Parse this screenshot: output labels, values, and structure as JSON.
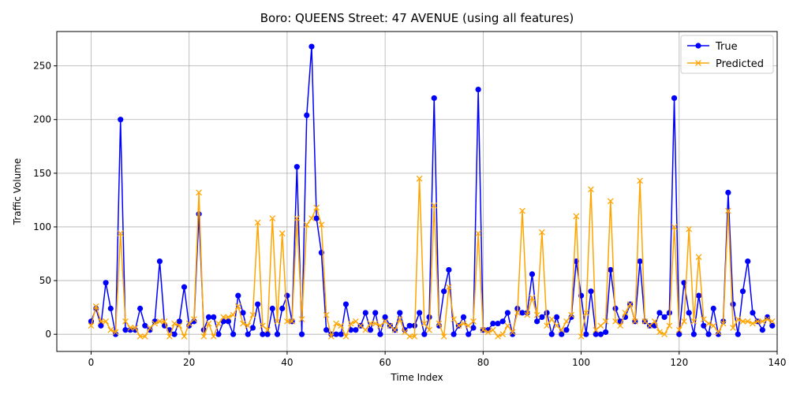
{
  "chart_data": {
    "type": "line",
    "title": "Boro: QUEENS Street: 47 AVENUE (using all features)",
    "xlabel": "Time Index",
    "ylabel": "Traffic Volume",
    "xlim": [
      -7,
      140
    ],
    "ylim": [
      -16,
      282
    ],
    "xticks": [
      0,
      20,
      40,
      60,
      80,
      100,
      120,
      140
    ],
    "yticks": [
      0,
      50,
      100,
      150,
      200,
      250
    ],
    "grid": true,
    "legend_placement": "top-right",
    "series": [
      {
        "name": "True",
        "color": "#0000ff",
        "marker": "circle",
        "values": [
          12,
          24,
          8,
          48,
          24,
          0,
          200,
          4,
          4,
          4,
          24,
          8,
          4,
          12,
          68,
          8,
          4,
          0,
          12,
          44,
          8,
          12,
          112,
          4,
          16,
          16,
          0,
          12,
          12,
          0,
          36,
          20,
          0,
          6,
          28,
          0,
          0,
          24,
          0,
          24,
          36,
          12,
          156,
          0,
          204,
          268,
          108,
          76,
          4,
          0,
          0,
          0,
          28,
          4,
          4,
          8,
          20,
          4,
          20,
          0,
          16,
          8,
          4,
          20,
          4,
          8,
          8,
          20,
          0,
          16,
          220,
          8,
          40,
          60,
          0,
          8,
          16,
          0,
          6,
          228,
          4,
          4,
          10,
          10,
          12,
          20,
          0,
          24,
          20,
          20,
          56,
          12,
          16,
          20,
          0,
          16,
          0,
          4,
          16,
          68,
          36,
          0,
          40,
          0,
          0,
          2,
          60,
          24,
          12,
          16,
          28,
          12,
          68,
          12,
          8,
          8,
          20,
          16,
          20,
          220,
          0,
          48,
          20,
          0,
          36,
          8,
          0,
          24,
          0,
          12,
          132,
          28,
          0,
          40,
          68,
          20,
          12,
          4,
          16,
          8
        ]
      },
      {
        "name": "Predicted",
        "color": "#ffa500",
        "marker": "x",
        "values": [
          8,
          26,
          12,
          12,
          4,
          2,
          94,
          12,
          6,
          6,
          -2,
          -2,
          6,
          10,
          12,
          12,
          -2,
          10,
          8,
          -2,
          10,
          14,
          132,
          -2,
          10,
          -2,
          10,
          16,
          16,
          18,
          26,
          10,
          8,
          18,
          104,
          8,
          4,
          108,
          12,
          94,
          12,
          12,
          108,
          14,
          102,
          108,
          118,
          102,
          18,
          -2,
          10,
          8,
          -2,
          10,
          12,
          8,
          4,
          10,
          10,
          8,
          12,
          8,
          4,
          14,
          2,
          -2,
          -2,
          145,
          10,
          4,
          120,
          10,
          -2,
          44,
          14,
          8,
          10,
          8,
          12,
          94,
          4,
          2,
          4,
          -2,
          0,
          8,
          2,
          20,
          115,
          18,
          34,
          18,
          95,
          8,
          14,
          8,
          4,
          12,
          18,
          110,
          -2,
          20,
          135,
          4,
          8,
          12,
          124,
          12,
          8,
          20,
          28,
          12,
          143,
          12,
          8,
          12,
          2,
          0,
          8,
          100,
          4,
          12,
          98,
          12,
          72,
          14,
          10,
          8,
          2,
          10,
          115,
          6,
          14,
          12,
          12,
          10,
          12,
          12,
          14,
          12
        ]
      }
    ]
  }
}
